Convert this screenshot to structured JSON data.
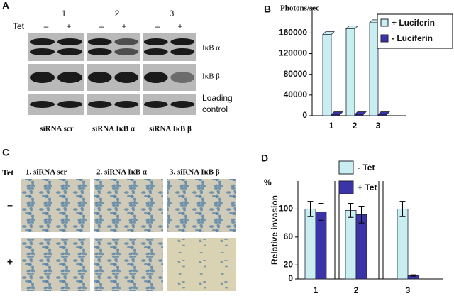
{
  "panel_labels": [
    "A",
    "B",
    "C",
    "D"
  ],
  "blot": {
    "tet_label": "Tet",
    "lanes": [
      "1",
      "2",
      "3"
    ],
    "signs": [
      "–",
      "+"
    ],
    "rows": [
      "IκB α",
      "IκB β",
      "Loading control"
    ],
    "groups": [
      "siRNA scr",
      "siRNA IκB α",
      "siRNA IκB β"
    ]
  },
  "micrographs": {
    "tet_label": "Tet",
    "columns": [
      "1. siRNA scr",
      "2. siRNA IκB α",
      "3. siRNA IκB β"
    ],
    "rows": [
      "–",
      "+"
    ]
  },
  "chart_data": [
    {
      "type": "bar",
      "y_label": "Photons/sec",
      "categories": [
        "1",
        "2",
        "3"
      ],
      "series": [
        {
          "name": "+ Luciferin",
          "color": "#c9eef2",
          "values": [
            157000,
            168000,
            180000
          ]
        },
        {
          "name": "- Luciferin",
          "color": "#3a34a8",
          "values": [
            2000,
            2000,
            2000
          ]
        }
      ],
      "ylim": [
        0,
        210000
      ],
      "yticks": [
        0,
        40000,
        80000,
        120000,
        160000
      ]
    },
    {
      "type": "bar",
      "y_label": "Relative invasion",
      "y_unit": "%",
      "categories": [
        "1",
        "2",
        "3"
      ],
      "series": [
        {
          "name": "- Tet",
          "color": "#c9eef2",
          "values": [
            100,
            98,
            100
          ],
          "errors": [
            11,
            10,
            11
          ]
        },
        {
          "name": "+ Tet",
          "color": "#3a34a8",
          "values": [
            96,
            92,
            5
          ],
          "errors": [
            12,
            12,
            1
          ]
        }
      ],
      "ylim": [
        0,
        140
      ],
      "yticks": [
        0,
        20,
        60,
        100
      ]
    }
  ]
}
